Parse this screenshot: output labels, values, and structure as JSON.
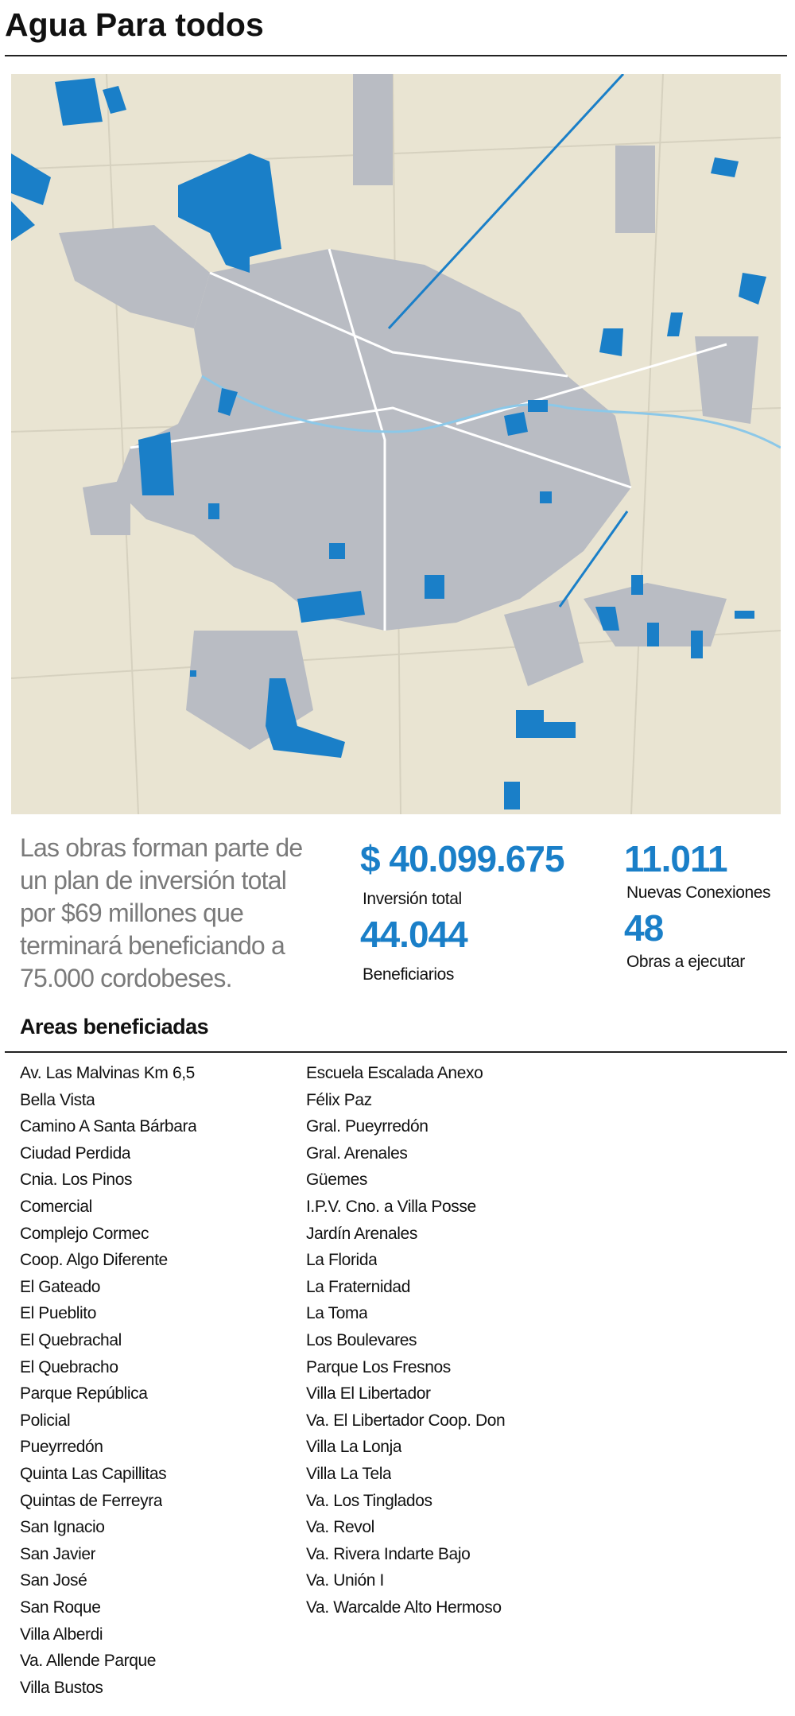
{
  "header": {
    "title": "Agua Para todos"
  },
  "summary": {
    "lines": [
      "Las obras forman parte de",
      "un plan de inversión total",
      "por $69 millones que",
      "terminará beneficiando a",
      "75.000 cordobeses."
    ]
  },
  "stats": [
    {
      "value": "$ 40.099.675",
      "label": "Inversión total"
    },
    {
      "value": "44.044",
      "label": "Beneficiarios"
    },
    {
      "value": "11.011",
      "label": "Nuevas Conexiones"
    },
    {
      "value": "48",
      "label": "Obras a ejecutar"
    }
  ],
  "areas": {
    "title": "Areas beneficiadas",
    "columns": [
      [
        "Av. Las Malvinas Km 6,5",
        "Bella Vista",
        "Camino A Santa Bárbara",
        "Ciudad Perdida",
        "Cnia. Los Pinos",
        "Comercial",
        "Complejo Cormec",
        "Coop. Algo Diferente",
        "El Gateado",
        "El Pueblito",
        "El Quebrachal",
        "El Quebracho",
        "Parque República",
        "Policial",
        "Pueyrredón",
        "Quinta Las Capillitas",
        "Quintas de Ferreyra",
        "San Ignacio",
        "San Javier",
        "San José",
        "San Roque",
        "Villa Alberdi",
        "Va. Allende Parque",
        "Villa Bustos"
      ],
      [
        "Escuela Escalada Anexo",
        "Félix Paz",
        "Gral. Pueyrredón",
        "Gral. Arenales",
        "Güemes",
        "I.P.V. Cno. a Villa Posse",
        "Jardín Arenales",
        "La Florida",
        "La Fraternidad",
        "La Toma",
        "Los Boulevares",
        "Parque Los Fresnos",
        "Villa El Libertador",
        "Va. El Libertador Coop. Don",
        "Villa La Lonja",
        "Villa La Tela",
        "Va. Los Tinglados",
        "Va. Revol",
        "Va. Rivera Indarte Bajo",
        "Va. Unión I",
        "Va. Warcalde Alto Hermoso"
      ]
    ]
  }
}
